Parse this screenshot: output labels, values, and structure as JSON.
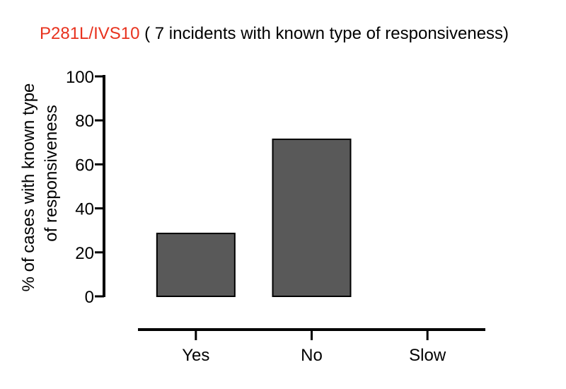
{
  "chart_data": {
    "type": "bar",
    "title_highlight": "P281L/IVS10",
    "title_rest": " ( 7 incidents with known type of responsiveness)",
    "ylabel_line1": "% of cases with  known type",
    "ylabel_line2": "of responsiveness",
    "categories": [
      "Yes",
      "No",
      "Slow"
    ],
    "values": [
      28.6,
      71.4,
      0
    ],
    "ylim": [
      0,
      100
    ],
    "yticks": [
      0,
      20,
      40,
      60,
      80,
      100
    ],
    "bar_color": "#595959",
    "title_highlight_color": "#e8321e",
    "grid": false
  }
}
